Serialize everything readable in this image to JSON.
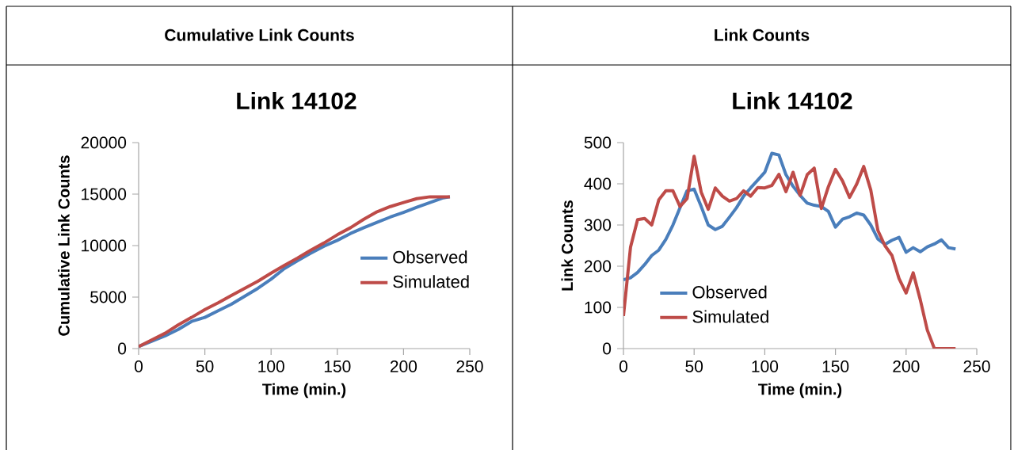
{
  "chart_data": [
    {
      "type": "line",
      "title": "Cumulative Link Counts",
      "subtitle": "Link 14102",
      "xlabel": "Time (min.)",
      "ylabel": "Cumulative Link Counts",
      "x": [
        0,
        10,
        20,
        30,
        40,
        50,
        60,
        70,
        80,
        90,
        100,
        110,
        120,
        130,
        140,
        150,
        160,
        170,
        180,
        190,
        200,
        210,
        220,
        230,
        235
      ],
      "series": [
        {
          "name": "Observed",
          "color": "#4a7ebb",
          "values": [
            200,
            720,
            1230,
            1870,
            2640,
            3030,
            3670,
            4310,
            5080,
            5850,
            6740,
            7770,
            8540,
            9260,
            9950,
            10510,
            11180,
            11740,
            12260,
            12770,
            13230,
            13720,
            14180,
            14640,
            14740
          ]
        },
        {
          "name": "Simulated",
          "color": "#be4b48",
          "values": [
            200,
            850,
            1490,
            2310,
            3030,
            3790,
            4440,
            5150,
            5850,
            6540,
            7330,
            8080,
            8790,
            9560,
            10260,
            11050,
            11740,
            12560,
            13280,
            13790,
            14180,
            14560,
            14740,
            14740,
            14740
          ]
        }
      ],
      "xlim": [
        0,
        250
      ],
      "ylim": [
        0,
        20000
      ],
      "xticks": [
        0,
        50,
        100,
        150,
        200,
        250
      ],
      "yticks": [
        0,
        5000,
        10000,
        15000,
        20000
      ],
      "legend": "bottom right",
      "marker": "none",
      "line_style": "solid"
    },
    {
      "type": "line",
      "title": "Link Counts",
      "subtitle": "Link 14102",
      "xlabel": "Time (min.)",
      "ylabel": "Link Counts",
      "x": [
        0,
        5,
        10,
        15,
        20,
        25,
        30,
        35,
        40,
        45,
        50,
        55,
        60,
        65,
        70,
        75,
        80,
        85,
        90,
        95,
        100,
        105,
        110,
        115,
        120,
        125,
        130,
        135,
        140,
        145,
        150,
        155,
        160,
        165,
        170,
        175,
        180,
        185,
        190,
        195,
        200,
        205,
        210,
        215,
        220,
        225,
        230,
        235
      ],
      "series": [
        {
          "name": "Observed",
          "color": "#4a7ebb",
          "values": [
            167,
            172,
            185,
            204,
            226,
            239,
            265,
            300,
            342,
            383,
            387,
            345,
            300,
            289,
            297,
            319,
            342,
            370,
            390,
            409,
            428,
            474,
            470,
            422,
            394,
            372,
            353,
            348,
            345,
            333,
            295,
            314,
            320,
            329,
            324,
            300,
            266,
            253,
            263,
            270,
            234,
            245,
            235,
            247,
            254,
            264,
            245,
            242
          ]
        },
        {
          "name": "Simulated",
          "color": "#be4b48",
          "values": [
            79,
            246,
            313,
            316,
            300,
            361,
            383,
            383,
            345,
            364,
            467,
            380,
            338,
            390,
            370,
            358,
            364,
            383,
            370,
            391,
            390,
            396,
            423,
            381,
            428,
            372,
            422,
            438,
            340,
            393,
            435,
            407,
            367,
            399,
            442,
            385,
            287,
            250,
            226,
            170,
            135,
            184,
            119,
            45,
            0,
            0,
            0,
            0
          ]
        }
      ],
      "xlim": [
        0,
        250
      ],
      "ylim": [
        0,
        500
      ],
      "xticks": [
        0,
        50,
        100,
        150,
        200,
        250
      ],
      "yticks": [
        0,
        100,
        200,
        300,
        400,
        500
      ],
      "legend": "bottom left",
      "marker": "none",
      "line_style": "solid"
    }
  ]
}
